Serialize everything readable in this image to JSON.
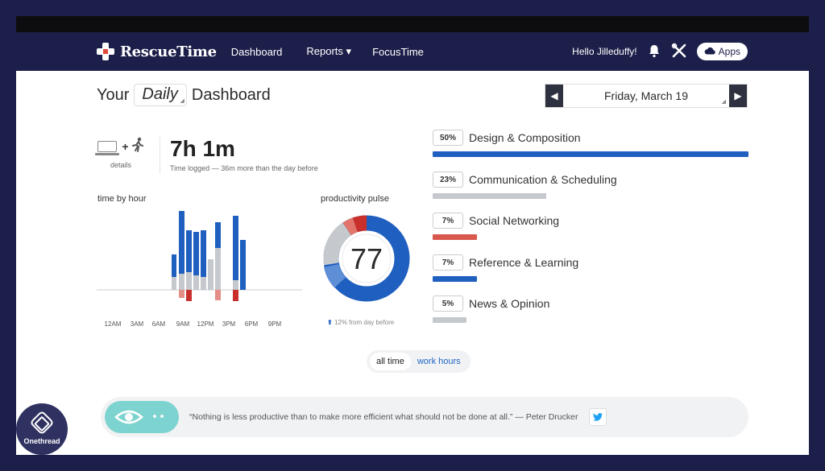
{
  "nav": {
    "brand": "RescueTime",
    "links": [
      "Dashboard",
      "Reports",
      "FocusTime"
    ],
    "reports_caret": "▾",
    "greeting": "Hello Jilleduffy!",
    "apps_label": "Apps"
  },
  "header": {
    "prefix": "Your",
    "period": "Daily",
    "suffix": "Dashboard",
    "date": "Friday, March 19",
    "prev_arrow": "◀",
    "next_arrow": "▶"
  },
  "summary": {
    "details_label": "details",
    "plus": "+",
    "total_time": "7h 1m",
    "subtitle": "Time logged — 36m more than the day before"
  },
  "time_by_hour": {
    "title": "time by hour",
    "hour_labels": [
      "12AM",
      "3AM",
      "6AM",
      "9AM",
      "12PM",
      "3PM",
      "6PM",
      "9PM"
    ]
  },
  "productivity_pulse": {
    "title": "productivity pulse",
    "score": "77",
    "change_arrow": "⬆",
    "change_text": "12% from day before"
  },
  "categories": [
    {
      "percent": "50%",
      "name": "Design & Composition",
      "value": 50,
      "color": "#1f5fbf"
    },
    {
      "percent": "23%",
      "name": "Communication & Scheduling",
      "value": 23,
      "color": "#c5c8cc"
    },
    {
      "percent": "7%",
      "name": "Social Networking",
      "value": 7,
      "color": "#d9584e"
    },
    {
      "percent": "7%",
      "name": "Reference & Learning",
      "value": 7,
      "color": "#1f5fbf"
    },
    {
      "percent": "5%",
      "name": "News & Opinion",
      "value": 5,
      "color": "#c5c8cc"
    }
  ],
  "toggle": {
    "all_time": "all time",
    "work_hours": "work hours"
  },
  "quote": {
    "text": "“Nothing is less productive than to make more efficient what should not be done at all.” — Peter Drucker"
  },
  "badge": {
    "label": "Onethread"
  },
  "colors": {
    "navy": "#1c1f4a",
    "productive_blue": "#1f5fbf",
    "neutral_gray": "#c5c8cc",
    "distracting_red": "#d9584e",
    "very_distracting_red": "#c9302c",
    "teal": "#7dd3cf"
  }
}
